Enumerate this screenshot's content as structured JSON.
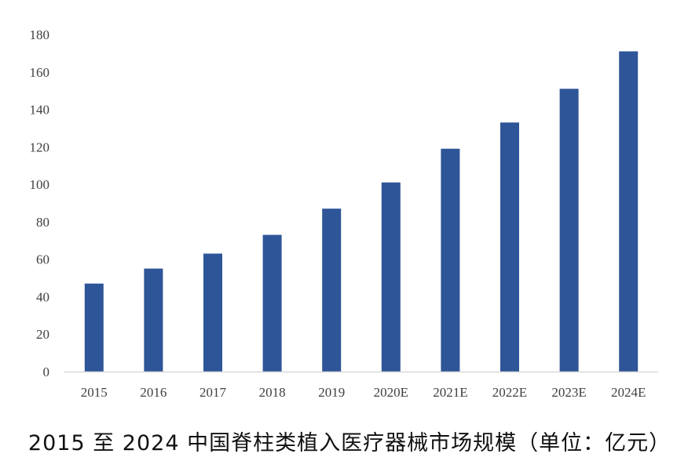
{
  "chart_data": {
    "type": "bar",
    "title": "2015 至 2024 中国脊柱类植入医疗器械市场规模（单位：亿元）",
    "xlabel": "",
    "ylabel": "",
    "categories": [
      "2015",
      "2016",
      "2017",
      "2018",
      "2019",
      "2020E",
      "2021E",
      "2022E",
      "2023E",
      "2024E"
    ],
    "values": [
      47,
      55,
      63,
      73,
      87,
      101,
      119,
      133,
      151,
      171
    ],
    "ylim": [
      0,
      180
    ],
    "yticks": [
      0,
      20,
      40,
      60,
      80,
      100,
      120,
      140,
      160,
      180
    ],
    "grid": false,
    "legend": "none",
    "bar_color": "#2E5597",
    "axis_color": "#D9D9D9"
  }
}
